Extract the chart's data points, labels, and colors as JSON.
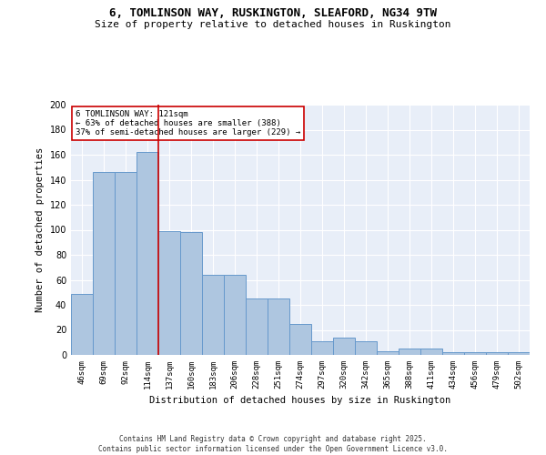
{
  "title1": "6, TOMLINSON WAY, RUSKINGTON, SLEAFORD, NG34 9TW",
  "title2": "Size of property relative to detached houses in Ruskington",
  "xlabel": "Distribution of detached houses by size in Ruskington",
  "ylabel": "Number of detached properties",
  "categories": [
    "46sqm",
    "69sqm",
    "92sqm",
    "114sqm",
    "137sqm",
    "160sqm",
    "183sqm",
    "206sqm",
    "228sqm",
    "251sqm",
    "274sqm",
    "297sqm",
    "320sqm",
    "342sqm",
    "365sqm",
    "388sqm",
    "411sqm",
    "434sqm",
    "456sqm",
    "479sqm",
    "502sqm"
  ],
  "values": [
    49,
    146,
    146,
    162,
    99,
    98,
    64,
    64,
    45,
    45,
    25,
    11,
    14,
    11,
    3,
    5,
    5,
    2,
    2,
    2,
    2
  ],
  "bar_color": "#aec6e0",
  "bar_edge_color": "#6699cc",
  "fig_facecolor": "#ffffff",
  "ax_facecolor": "#e8eef8",
  "grid_color": "#ffffff",
  "vline_color": "#cc0000",
  "vline_x": 3.5,
  "annotation_text": "6 TOMLINSON WAY: 121sqm\n← 63% of detached houses are smaller (388)\n37% of semi-detached houses are larger (229) →",
  "annotation_box_facecolor": "#ffffff",
  "annotation_box_edgecolor": "#cc0000",
  "ylim": [
    0,
    200
  ],
  "yticks": [
    0,
    20,
    40,
    60,
    80,
    100,
    120,
    140,
    160,
    180,
    200
  ],
  "footnote": "Contains HM Land Registry data © Crown copyright and database right 2025.\nContains public sector information licensed under the Open Government Licence v3.0."
}
